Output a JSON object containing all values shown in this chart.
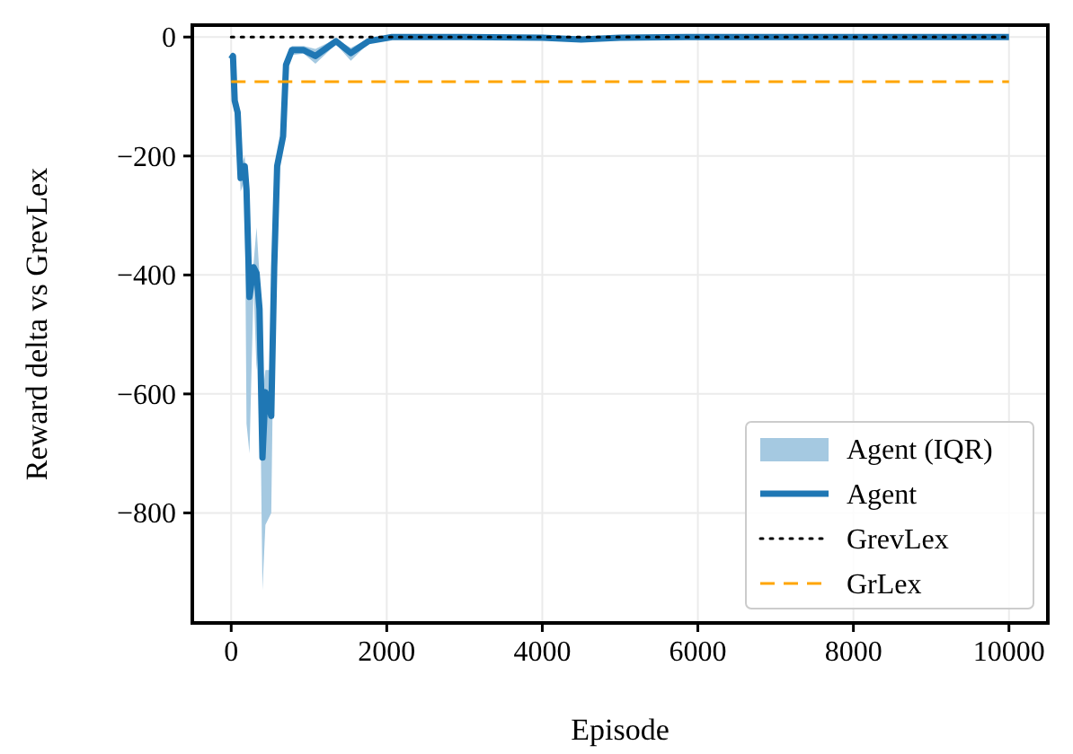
{
  "chart_data": {
    "type": "line",
    "xlabel": "Episode",
    "ylabel": "Reward delta vs GrevLex",
    "xlim": [
      -500,
      10500
    ],
    "ylim": [
      -985,
      20
    ],
    "xticks": [
      0,
      2000,
      4000,
      6000,
      8000,
      10000
    ],
    "yticks": [
      -800,
      -600,
      -400,
      -200,
      0
    ],
    "grid": true,
    "legend": "bottom right",
    "annotations": [
      "Agent (IQR)"
    ],
    "series": [
      {
        "name": "Agent",
        "type": "line",
        "color": "#1f77b4",
        "line_style": "solid",
        "x": [
          0,
          23,
          45,
          83,
          121,
          174,
          197,
          235,
          288,
          326,
          364,
          402,
          440,
          515,
          553,
          591,
          667,
          705,
          780,
          932,
          1083,
          1348,
          1538,
          1765,
          2068,
          3000,
          4000,
          4500,
          5000,
          6000,
          8000,
          10000
        ],
        "values": [
          -37,
          -32,
          -107,
          -127,
          -237,
          -217,
          -257,
          -437,
          -387,
          -397,
          -457,
          -707,
          -597,
          -637,
          -387,
          -217,
          -167,
          -47,
          -22,
          -22,
          -32,
          -7,
          -27,
          -7,
          0,
          0,
          -1,
          -4,
          -1,
          0,
          0,
          0
        ],
        "lower": [
          -45,
          -40,
          -115,
          -140,
          -260,
          -240,
          -650,
          -700,
          -420,
          -560,
          -500,
          -930,
          -820,
          -800,
          -420,
          -240,
          -180,
          -55,
          -30,
          -28,
          -45,
          -12,
          -40,
          -10,
          -3,
          -3,
          -4,
          -7,
          -4,
          -3,
          -3,
          -3
        ],
        "upper": [
          -30,
          -25,
          -100,
          -115,
          -220,
          -200,
          -240,
          -420,
          -380,
          -320,
          -400,
          -600,
          -560,
          -560,
          -360,
          -200,
          -150,
          -40,
          -15,
          -15,
          -20,
          -3,
          -18,
          -3,
          2,
          2,
          1,
          -1,
          1,
          2,
          2,
          2
        ]
      },
      {
        "name": "GrevLex",
        "type": "line",
        "color": "#000000",
        "line_style": "dotted",
        "x": [
          0,
          10000
        ],
        "values": [
          0,
          0
        ]
      },
      {
        "name": "GrLex",
        "type": "line",
        "color": "#ffa500",
        "line_style": "dashed",
        "x": [
          0,
          10000
        ],
        "values": [
          -75,
          -75
        ]
      }
    ]
  }
}
